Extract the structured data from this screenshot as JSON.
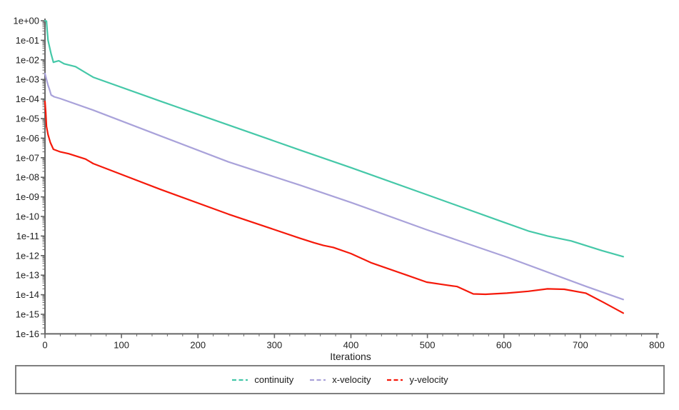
{
  "chart_data": {
    "type": "line",
    "title": "",
    "xlabel": "Iterations",
    "ylabel": "",
    "grid": false,
    "x_axis": {
      "min": 0,
      "max": 800,
      "major_tick_step": 100,
      "minor_tick_step": 20,
      "tick_labels": [
        "0",
        "100",
        "200",
        "300",
        "400",
        "500",
        "600",
        "700",
        "800"
      ]
    },
    "y_axis": {
      "scale": "log",
      "top_exponent": 0,
      "bottom_exponent": -16,
      "tick_labels": [
        "1e+00",
        "1e-01",
        "1e-02",
        "1e-03",
        "1e-04",
        "1e-05",
        "1e-06",
        "1e-07",
        "1e-08",
        "1e-09",
        "1e-10",
        "1e-11",
        "1e-12",
        "1e-13",
        "1e-14",
        "1e-15",
        "1e-16"
      ],
      "minor_ticks": "log-2-to-9"
    },
    "legend": {
      "position": "bottom",
      "entries": [
        {
          "label": "continuity",
          "color": "#45c8a8"
        },
        {
          "label": "x-velocity",
          "color": "#a9a2da"
        },
        {
          "label": "y-velocity",
          "color": "#f5190a"
        }
      ]
    },
    "series": [
      {
        "name": "continuity",
        "color": "#45c8a8",
        "points": [
          [
            0,
            1.0
          ],
          [
            2,
            0.95
          ],
          [
            3,
            0.28
          ],
          [
            4,
            0.1
          ],
          [
            6,
            0.045
          ],
          [
            8,
            0.02
          ],
          [
            11,
            0.0075
          ],
          [
            14,
            0.0082
          ],
          [
            18,
            0.009
          ],
          [
            25,
            0.0063
          ],
          [
            40,
            0.0045
          ],
          [
            63,
            0.0013
          ],
          [
            151,
            7.7e-05
          ],
          [
            333,
            2.5e-07
          ],
          [
            400,
            3.1e-08
          ],
          [
            499,
            1.3e-09
          ],
          [
            595,
            5.9e-11
          ],
          [
            632,
            1.8e-11
          ],
          [
            657,
            1e-11
          ],
          [
            688,
            5.6e-12
          ],
          [
            728,
            1.8e-12
          ],
          [
            756,
            8.8e-13
          ]
        ]
      },
      {
        "name": "x-velocity",
        "color": "#a9a2da",
        "points": [
          [
            0,
            0.002
          ],
          [
            2,
            0.001
          ],
          [
            4,
            0.0005
          ],
          [
            6,
            0.0003
          ],
          [
            8,
            0.00016
          ],
          [
            12,
            0.00013
          ],
          [
            20,
            0.000105
          ],
          [
            63,
            2.7e-05
          ],
          [
            151,
            1.3e-06
          ],
          [
            240,
            6.1e-08
          ],
          [
            333,
            4e-09
          ],
          [
            400,
            5.2e-10
          ],
          [
            499,
            2.1e-11
          ],
          [
            604,
            8.3e-13
          ],
          [
            707,
            2.7e-14
          ],
          [
            756,
            5.7e-15
          ]
        ]
      },
      {
        "name": "y-velocity",
        "color": "#f5190a",
        "points": [
          [
            0,
            7.5e-05
          ],
          [
            1,
            2e-05
          ],
          [
            2,
            4e-06
          ],
          [
            4,
            1.5e-06
          ],
          [
            7,
            6e-07
          ],
          [
            11,
            2.7e-07
          ],
          [
            20,
            2e-07
          ],
          [
            31,
            1.6e-07
          ],
          [
            53,
            8.5e-08
          ],
          [
            63,
            5e-08
          ],
          [
            151,
            2.4e-09
          ],
          [
            240,
            1.3e-10
          ],
          [
            333,
            7.8e-12
          ],
          [
            352,
            4.5e-12
          ],
          [
            364,
            3.3e-12
          ],
          [
            377,
            2.6e-12
          ],
          [
            400,
            1.26e-12
          ],
          [
            427,
            4.2e-13
          ],
          [
            473,
            1e-13
          ],
          [
            499,
            4.4e-14
          ],
          [
            523,
            3.2e-14
          ],
          [
            539,
            2.6e-14
          ],
          [
            560,
            1.1e-14
          ],
          [
            576,
            1.05e-14
          ],
          [
            604,
            1.2e-14
          ],
          [
            632,
            1.5e-14
          ],
          [
            657,
            2e-14
          ],
          [
            679,
            1.9e-14
          ],
          [
            707,
            1.2e-14
          ],
          [
            730,
            4.1e-15
          ],
          [
            756,
            1.15e-15
          ]
        ]
      }
    ],
    "style": {
      "axis_color": "#666666",
      "text_color": "#1f1f1f",
      "legend_border_color": "#7f7f7f",
      "background": "#ffffff",
      "line_width": 2.2
    }
  }
}
